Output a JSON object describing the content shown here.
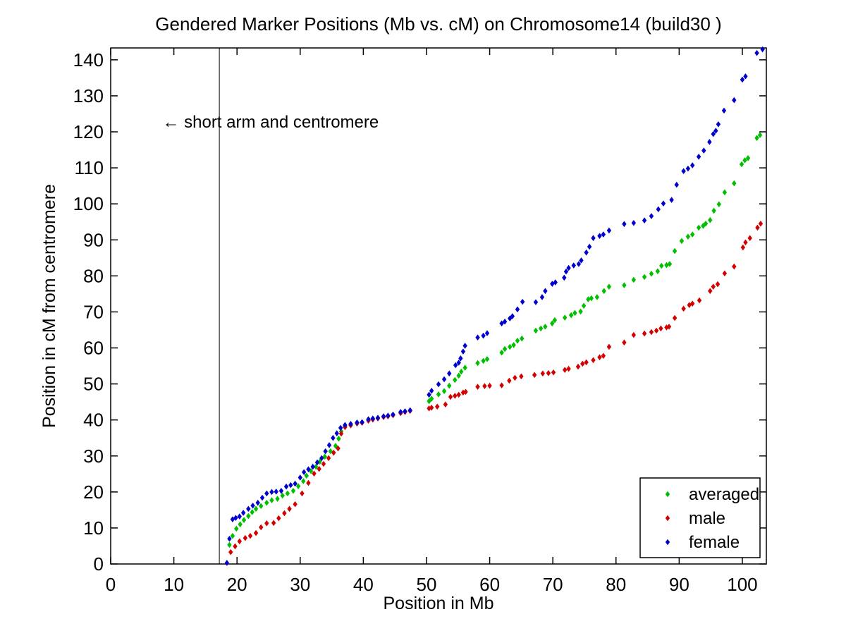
{
  "chart_data": {
    "type": "scatter",
    "title": "Gendered Marker Positions (Mb vs. cM) on Chromosome14 (build30 )",
    "xlabel": "Position in Mb",
    "ylabel": "Position in cM from centromere",
    "xlim": [
      0,
      103.8
    ],
    "ylim": [
      0,
      143.3
    ],
    "xticks": [
      0,
      10,
      20,
      30,
      40,
      50,
      60,
      70,
      80,
      90,
      100
    ],
    "yticks": [
      0,
      10,
      20,
      30,
      40,
      50,
      60,
      70,
      80,
      90,
      100,
      110,
      120,
      130,
      140
    ],
    "grid": false,
    "background": "#ffffff",
    "axis_color": "#000000",
    "marker": "diamond",
    "centromere_line_x_mb": 17.2,
    "annotation": {
      "text": "← short arm and centromere",
      "x_mb": 8.2,
      "y_cm": 121.2
    },
    "legend": {
      "position": "lower right",
      "entries": [
        {
          "label": "averaged",
          "color": "#00bf00"
        },
        {
          "label": "male",
          "color": "#d40000"
        },
        {
          "label": "female",
          "color": "#0000cd"
        }
      ]
    },
    "series": [
      {
        "name": "averaged",
        "color": "#00bf00",
        "points": [
          [
            18.8,
            5.3
          ],
          [
            19.3,
            7.8
          ],
          [
            19.9,
            9.8
          ],
          [
            20.5,
            11.0
          ],
          [
            21.1,
            12.2
          ],
          [
            21.8,
            13.3
          ],
          [
            22.4,
            14.4
          ],
          [
            23.0,
            15.3
          ],
          [
            23.8,
            16.1
          ],
          [
            24.7,
            17.0
          ],
          [
            25.5,
            17.7
          ],
          [
            26.4,
            18.1
          ],
          [
            27.2,
            19.0
          ],
          [
            28.0,
            19.6
          ],
          [
            28.9,
            20.3
          ],
          [
            29.7,
            21.6
          ],
          [
            30.5,
            23.0
          ],
          [
            31.0,
            24.5
          ],
          [
            31.7,
            25.8
          ],
          [
            32.5,
            27.0
          ],
          [
            33.1,
            28.4
          ],
          [
            33.9,
            29.8
          ],
          [
            34.8,
            31.3
          ],
          [
            35.6,
            32.8
          ],
          [
            36.1,
            34.8
          ],
          [
            36.5,
            36.8
          ],
          [
            37.1,
            38.3
          ],
          [
            38.0,
            38.7
          ],
          [
            39.0,
            39.2
          ],
          [
            39.8,
            39.3
          ],
          [
            40.8,
            40.0
          ],
          [
            41.5,
            40.3
          ],
          [
            42.3,
            40.5
          ],
          [
            43.2,
            40.9
          ],
          [
            43.9,
            41.1
          ],
          [
            44.7,
            41.4
          ],
          [
            45.9,
            42.0
          ],
          [
            46.6,
            42.3
          ],
          [
            47.4,
            42.6
          ],
          [
            50.4,
            45.2
          ],
          [
            50.8,
            45.9
          ],
          [
            51.9,
            47.1
          ],
          [
            52.8,
            48.0
          ],
          [
            53.6,
            49.5
          ],
          [
            54.5,
            51.1
          ],
          [
            55.1,
            52.3
          ],
          [
            55.5,
            53.4
          ],
          [
            56.1,
            54.5
          ],
          [
            58.1,
            55.8
          ],
          [
            59.0,
            56.4
          ],
          [
            59.6,
            56.9
          ],
          [
            61.9,
            58.7
          ],
          [
            62.4,
            59.7
          ],
          [
            63.2,
            60.3
          ],
          [
            63.8,
            60.8
          ],
          [
            64.4,
            62.0
          ],
          [
            65.1,
            62.6
          ],
          [
            67.3,
            64.8
          ],
          [
            68.1,
            65.4
          ],
          [
            68.8,
            65.9
          ],
          [
            69.9,
            66.8
          ],
          [
            70.3,
            67.7
          ],
          [
            71.9,
            68.4
          ],
          [
            72.9,
            69.1
          ],
          [
            73.5,
            69.7
          ],
          [
            74.4,
            70.1
          ],
          [
            74.9,
            71.7
          ],
          [
            75.6,
            73.5
          ],
          [
            76.1,
            73.8
          ],
          [
            77.0,
            74.1
          ],
          [
            78.1,
            75.8
          ],
          [
            78.9,
            77.0
          ],
          [
            81.3,
            77.4
          ],
          [
            82.8,
            78.9
          ],
          [
            84.5,
            79.7
          ],
          [
            85.6,
            80.6
          ],
          [
            86.6,
            81.3
          ],
          [
            87.2,
            82.8
          ],
          [
            88.0,
            83.0
          ],
          [
            88.5,
            83.3
          ],
          [
            89.3,
            86.9
          ],
          [
            90.4,
            89.7
          ],
          [
            91.4,
            90.9
          ],
          [
            92.1,
            91.5
          ],
          [
            93.1,
            93.4
          ],
          [
            93.8,
            93.9
          ],
          [
            94.2,
            94.5
          ],
          [
            94.9,
            95.5
          ],
          [
            95.5,
            98.1
          ],
          [
            96.3,
            99.9
          ],
          [
            97.2,
            103.2
          ],
          [
            98.7,
            105.7
          ],
          [
            99.9,
            111.0
          ],
          [
            100.4,
            112.1
          ],
          [
            100.9,
            112.7
          ],
          [
            102.3,
            118.3
          ],
          [
            102.8,
            119.1
          ]
        ]
      },
      {
        "name": "male",
        "color": "#d40000",
        "points": [
          [
            19.0,
            3.3
          ],
          [
            19.7,
            4.9
          ],
          [
            20.4,
            6.3
          ],
          [
            21.3,
            7.2
          ],
          [
            22.1,
            7.8
          ],
          [
            23.0,
            8.6
          ],
          [
            23.8,
            10.2
          ],
          [
            24.7,
            11.3
          ],
          [
            25.8,
            11.4
          ],
          [
            26.6,
            12.7
          ],
          [
            27.5,
            14.1
          ],
          [
            28.3,
            15.3
          ],
          [
            29.2,
            16.6
          ],
          [
            30.3,
            19.6
          ],
          [
            31.3,
            22.5
          ],
          [
            32.2,
            25.1
          ],
          [
            33.0,
            26.4
          ],
          [
            33.7,
            27.8
          ],
          [
            34.5,
            29.4
          ],
          [
            35.3,
            30.9
          ],
          [
            36.0,
            32.1
          ],
          [
            36.5,
            36.2
          ],
          [
            37.1,
            38.0
          ],
          [
            38.0,
            38.5
          ],
          [
            39.0,
            39.0
          ],
          [
            39.8,
            39.2
          ],
          [
            40.8,
            39.8
          ],
          [
            41.5,
            40.1
          ],
          [
            42.3,
            40.4
          ],
          [
            43.2,
            40.8
          ],
          [
            43.9,
            41.0
          ],
          [
            44.7,
            41.3
          ],
          [
            45.9,
            41.9
          ],
          [
            46.6,
            42.2
          ],
          [
            47.4,
            42.5
          ],
          [
            50.4,
            43.2
          ],
          [
            50.8,
            43.4
          ],
          [
            51.7,
            43.7
          ],
          [
            53.0,
            44.3
          ],
          [
            53.8,
            46.4
          ],
          [
            54.5,
            46.7
          ],
          [
            55.1,
            47.0
          ],
          [
            55.8,
            47.6
          ],
          [
            56.2,
            47.8
          ],
          [
            58.1,
            49.2
          ],
          [
            59.2,
            49.4
          ],
          [
            60.0,
            49.5
          ],
          [
            61.9,
            49.6
          ],
          [
            63.1,
            50.9
          ],
          [
            64.0,
            51.7
          ],
          [
            65.0,
            52.1
          ],
          [
            67.1,
            52.5
          ],
          [
            68.4,
            52.9
          ],
          [
            69.3,
            53.0
          ],
          [
            70.1,
            53.2
          ],
          [
            71.9,
            53.9
          ],
          [
            72.5,
            54.2
          ],
          [
            74.0,
            54.8
          ],
          [
            74.7,
            55.6
          ],
          [
            75.3,
            56.0
          ],
          [
            76.4,
            56.6
          ],
          [
            77.4,
            57.4
          ],
          [
            78.0,
            57.8
          ],
          [
            78.9,
            60.3
          ],
          [
            81.3,
            61.5
          ],
          [
            82.8,
            63.6
          ],
          [
            84.5,
            64.0
          ],
          [
            85.6,
            64.4
          ],
          [
            86.4,
            64.8
          ],
          [
            87.1,
            65.4
          ],
          [
            88.0,
            65.7
          ],
          [
            88.4,
            65.9
          ],
          [
            89.3,
            68.3
          ],
          [
            90.7,
            70.9
          ],
          [
            91.6,
            71.9
          ],
          [
            92.1,
            72.3
          ],
          [
            93.2,
            73.2
          ],
          [
            94.9,
            75.8
          ],
          [
            95.4,
            77.0
          ],
          [
            96.1,
            77.7
          ],
          [
            97.2,
            80.7
          ],
          [
            98.7,
            82.6
          ],
          [
            100.1,
            87.9
          ],
          [
            100.5,
            89.3
          ],
          [
            101.2,
            90.5
          ],
          [
            102.4,
            93.4
          ],
          [
            102.9,
            94.5
          ]
        ]
      },
      {
        "name": "female",
        "color": "#0000cd",
        "points": [
          [
            18.4,
            0.3
          ],
          [
            18.8,
            7.0
          ],
          [
            19.3,
            12.4
          ],
          [
            19.8,
            12.8
          ],
          [
            20.4,
            13.2
          ],
          [
            21.0,
            14.2
          ],
          [
            21.8,
            15.3
          ],
          [
            22.5,
            16.2
          ],
          [
            23.3,
            17.0
          ],
          [
            24.0,
            18.4
          ],
          [
            24.7,
            19.6
          ],
          [
            25.5,
            20.0
          ],
          [
            26.2,
            20.1
          ],
          [
            27.0,
            20.3
          ],
          [
            27.8,
            21.5
          ],
          [
            28.5,
            21.9
          ],
          [
            29.2,
            22.3
          ],
          [
            30.0,
            24.0
          ],
          [
            30.6,
            25.5
          ],
          [
            31.3,
            26.3
          ],
          [
            32.0,
            27.0
          ],
          [
            32.7,
            28.2
          ],
          [
            33.4,
            29.4
          ],
          [
            34.0,
            31.3
          ],
          [
            34.6,
            33.0
          ],
          [
            35.2,
            35.0
          ],
          [
            35.8,
            36.3
          ],
          [
            36.4,
            37.8
          ],
          [
            37.1,
            38.6
          ],
          [
            38.0,
            38.9
          ],
          [
            39.0,
            39.3
          ],
          [
            39.8,
            39.4
          ],
          [
            40.8,
            40.2
          ],
          [
            41.5,
            40.4
          ],
          [
            42.3,
            40.6
          ],
          [
            43.2,
            41.0
          ],
          [
            43.9,
            41.2
          ],
          [
            44.7,
            41.5
          ],
          [
            45.9,
            42.2
          ],
          [
            46.6,
            42.4
          ],
          [
            47.4,
            42.7
          ],
          [
            50.4,
            47.0
          ],
          [
            50.8,
            48.1
          ],
          [
            51.9,
            49.9
          ],
          [
            52.8,
            51.3
          ],
          [
            53.6,
            52.9
          ],
          [
            54.6,
            55.2
          ],
          [
            55.1,
            55.9
          ],
          [
            55.4,
            57.1
          ],
          [
            55.8,
            59.0
          ],
          [
            56.1,
            60.6
          ],
          [
            58.1,
            62.9
          ],
          [
            59.0,
            63.4
          ],
          [
            59.6,
            64.1
          ],
          [
            61.9,
            66.8
          ],
          [
            62.4,
            67.3
          ],
          [
            63.2,
            68.2
          ],
          [
            63.6,
            68.8
          ],
          [
            64.4,
            70.7
          ],
          [
            65.2,
            72.8
          ],
          [
            67.3,
            72.7
          ],
          [
            68.3,
            74.1
          ],
          [
            68.8,
            75.8
          ],
          [
            69.9,
            77.8
          ],
          [
            70.4,
            78.2
          ],
          [
            71.8,
            79.5
          ],
          [
            72.1,
            81.2
          ],
          [
            72.5,
            82.2
          ],
          [
            73.3,
            82.9
          ],
          [
            74.1,
            83.3
          ],
          [
            74.5,
            84.3
          ],
          [
            75.3,
            86.5
          ],
          [
            75.8,
            88.1
          ],
          [
            76.4,
            90.5
          ],
          [
            77.4,
            91.1
          ],
          [
            78.0,
            91.5
          ],
          [
            78.9,
            92.6
          ],
          [
            81.3,
            94.4
          ],
          [
            82.8,
            94.7
          ],
          [
            84.5,
            95.4
          ],
          [
            85.6,
            96.6
          ],
          [
            86.7,
            98.5
          ],
          [
            87.5,
            100.1
          ],
          [
            88.8,
            101.1
          ],
          [
            89.6,
            105.3
          ],
          [
            90.7,
            109.1
          ],
          [
            91.4,
            109.8
          ],
          [
            92.1,
            110.7
          ],
          [
            93.1,
            113.1
          ],
          [
            93.9,
            114.8
          ],
          [
            94.8,
            117.2
          ],
          [
            95.4,
            119.4
          ],
          [
            95.8,
            120.3
          ],
          [
            96.2,
            122.1
          ],
          [
            97.1,
            125.9
          ],
          [
            98.7,
            128.8
          ],
          [
            100.0,
            134.5
          ],
          [
            100.5,
            135.4
          ],
          [
            102.3,
            141.9
          ],
          [
            103.2,
            142.9
          ]
        ]
      }
    ]
  }
}
